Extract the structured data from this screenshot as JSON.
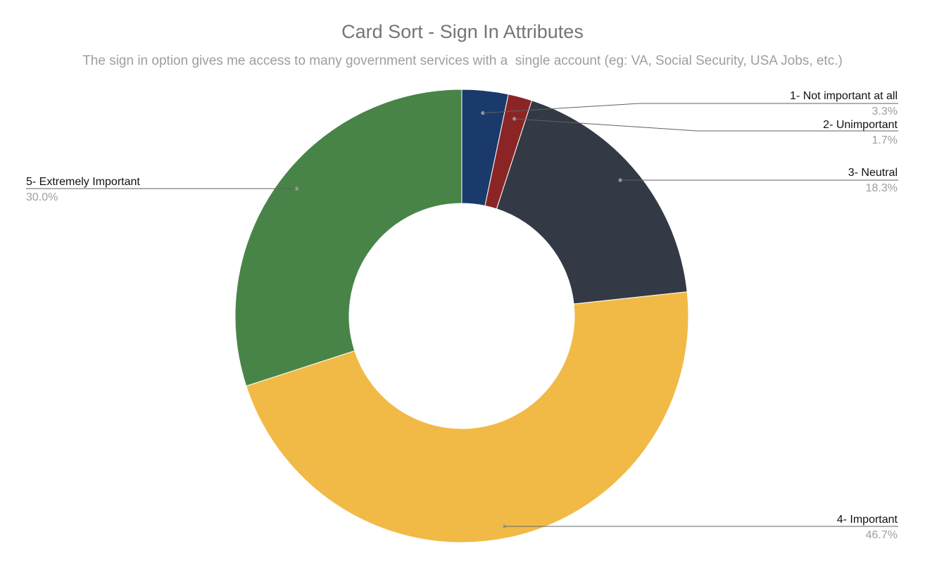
{
  "chart_data": {
    "type": "pie",
    "variant": "donut",
    "title": "Card Sort - Sign In Attributes",
    "subtitle": "The sign in option gives me access to many government services with a  single account (eg: VA, Social Security, USA Jobs, etc.)",
    "legend": "none",
    "slices": [
      {
        "label": "1- Not important at all",
        "value": 3.3,
        "display": "3.3%",
        "color": "#1a3a6c"
      },
      {
        "label": "2- Unimportant",
        "value": 1.7,
        "display": "1.7%",
        "color": "#8b2525"
      },
      {
        "label": "3- Neutral",
        "value": 18.3,
        "display": "18.3%",
        "color": "#333a45"
      },
      {
        "label": "4- Important",
        "value": 46.7,
        "display": "46.7%",
        "color": "#f1ba46"
      },
      {
        "label": "5- Extremely Important",
        "value": 30.0,
        "display": "30.0%",
        "color": "#488448"
      }
    ]
  }
}
